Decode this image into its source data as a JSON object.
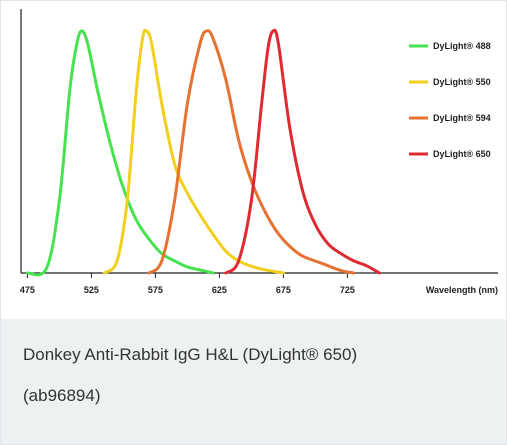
{
  "chart_data": {
    "type": "line",
    "title": "",
    "xlabel": "Wavelength (nm)",
    "ylabel": "",
    "xlim": [
      470,
      770
    ],
    "ylim": [
      0,
      1.0
    ],
    "x_ticks": [
      475,
      525,
      575,
      625,
      675,
      725
    ],
    "grid": false,
    "legend_position": "top-right",
    "series": [
      {
        "name": "DyLight® 488",
        "color": "#47e24f",
        "points": [
          [
            475,
            0.0
          ],
          [
            490,
            0.02
          ],
          [
            500,
            0.3
          ],
          [
            508,
            0.75
          ],
          [
            513,
            0.93
          ],
          [
            517,
            1.0
          ],
          [
            522,
            0.95
          ],
          [
            530,
            0.75
          ],
          [
            540,
            0.53
          ],
          [
            550,
            0.35
          ],
          [
            560,
            0.22
          ],
          [
            570,
            0.14
          ],
          [
            580,
            0.08
          ],
          [
            590,
            0.05
          ],
          [
            600,
            0.025
          ],
          [
            612,
            0.01
          ],
          [
            620,
            0.0
          ]
        ]
      },
      {
        "name": "DyLight® 550",
        "color": "#f2cf1f",
        "points": [
          [
            535,
            0.0
          ],
          [
            545,
            0.05
          ],
          [
            553,
            0.3
          ],
          [
            560,
            0.75
          ],
          [
            565,
            0.97
          ],
          [
            568,
            1.0
          ],
          [
            572,
            0.95
          ],
          [
            580,
            0.7
          ],
          [
            590,
            0.45
          ],
          [
            600,
            0.33
          ],
          [
            610,
            0.24
          ],
          [
            620,
            0.16
          ],
          [
            630,
            0.09
          ],
          [
            640,
            0.05
          ],
          [
            655,
            0.02
          ],
          [
            675,
            0.0
          ]
        ]
      },
      {
        "name": "DyLight® 594",
        "color": "#e57230",
        "points": [
          [
            570,
            0.0
          ],
          [
            580,
            0.05
          ],
          [
            590,
            0.3
          ],
          [
            600,
            0.7
          ],
          [
            610,
            0.95
          ],
          [
            615,
            1.0
          ],
          [
            620,
            0.97
          ],
          [
            630,
            0.8
          ],
          [
            640,
            0.55
          ],
          [
            650,
            0.38
          ],
          [
            660,
            0.26
          ],
          [
            670,
            0.17
          ],
          [
            680,
            0.11
          ],
          [
            690,
            0.07
          ],
          [
            705,
            0.04
          ],
          [
            720,
            0.01
          ],
          [
            730,
            0.0
          ]
        ]
      },
      {
        "name": "DyLight® 650",
        "color": "#e02a32",
        "points": [
          [
            630,
            0.0
          ],
          [
            640,
            0.05
          ],
          [
            650,
            0.3
          ],
          [
            658,
            0.7
          ],
          [
            663,
            0.93
          ],
          [
            667,
            1.0
          ],
          [
            671,
            0.95
          ],
          [
            680,
            0.6
          ],
          [
            690,
            0.34
          ],
          [
            700,
            0.2
          ],
          [
            710,
            0.12
          ],
          [
            720,
            0.08
          ],
          [
            730,
            0.05
          ],
          [
            740,
            0.03
          ],
          [
            750,
            0.0
          ]
        ]
      }
    ]
  },
  "caption": {
    "line1": "Donkey Anti-Rabbit IgG H&L (DyLight® 650)",
    "line2": "(ab96894)"
  }
}
